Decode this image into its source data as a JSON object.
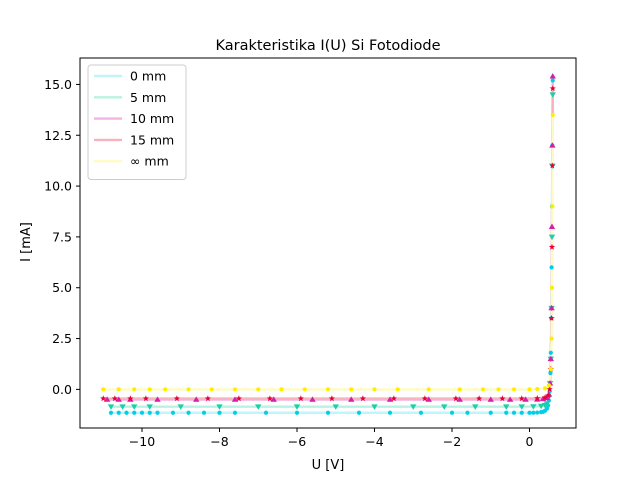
{
  "chart_data": {
    "type": "scatter",
    "title": "Karakteristika I(U) Si Fotodiode",
    "xlabel": "U [V]",
    "ylabel": "I [mA]",
    "xlim": [
      -11.6,
      1.2
    ],
    "ylim": [
      -1.9,
      16.3
    ],
    "xticks": [
      -10,
      -8,
      -6,
      -4,
      -2,
      0
    ],
    "yticks": [
      0.0,
      2.5,
      5.0,
      7.5,
      10.0,
      12.5,
      15.0
    ],
    "xtick_labels": [
      "−10",
      "−8",
      "−6",
      "−4",
      "−2",
      "0"
    ],
    "ytick_labels": [
      "0.0",
      "2.5",
      "5.0",
      "7.5",
      "10.0",
      "12.5",
      "15.0"
    ],
    "grid": false,
    "legend_position": "top-left",
    "series": [
      {
        "name": "0 mm",
        "color": "#00cfe8",
        "line_color": "#bff6fb",
        "marker": "circle",
        "x": [
          -10.8,
          -10.6,
          -10.4,
          -10.2,
          -10.0,
          -9.8,
          -9.6,
          -9.2,
          -8.8,
          -8.4,
          -8.0,
          -7.6,
          -6.8,
          -6.0,
          -5.2,
          -4.4,
          -3.6,
          -2.8,
          -2.0,
          -1.6,
          -1.0,
          -0.6,
          -0.4,
          -0.2,
          0.0,
          0.1,
          0.2,
          0.3,
          0.35,
          0.4,
          0.45,
          0.48,
          0.5,
          0.52,
          0.54,
          0.55,
          0.56,
          0.57,
          0.58,
          0.59,
          0.6
        ],
        "y": [
          -1.15,
          -1.15,
          -1.15,
          -1.15,
          -1.15,
          -1.15,
          -1.15,
          -1.15,
          -1.15,
          -1.15,
          -1.15,
          -1.15,
          -1.15,
          -1.15,
          -1.15,
          -1.15,
          -1.15,
          -1.15,
          -1.15,
          -1.15,
          -1.15,
          -1.15,
          -1.15,
          -1.15,
          -1.15,
          -1.15,
          -1.14,
          -1.12,
          -1.1,
          -1.05,
          -0.95,
          -0.8,
          -0.55,
          -0.1,
          0.8,
          1.8,
          3.5,
          6.0,
          9.0,
          12.0,
          15.2
        ]
      },
      {
        "name": "5 mm",
        "color": "#1dcfa8",
        "line_color": "#b9f2e3",
        "marker": "triangle-down",
        "x": [
          -10.8,
          -10.5,
          -10.2,
          -9.8,
          -9.0,
          -8.0,
          -7.0,
          -6.0,
          -5.0,
          -4.0,
          -3.0,
          -2.2,
          -1.4,
          -0.6,
          -0.2,
          0.1,
          0.3,
          0.4,
          0.45,
          0.5,
          0.53,
          0.55,
          0.57,
          0.58,
          0.59,
          0.6
        ],
        "y": [
          -0.85,
          -0.85,
          -0.85,
          -0.85,
          -0.85,
          -0.85,
          -0.85,
          -0.85,
          -0.85,
          -0.85,
          -0.85,
          -0.85,
          -0.85,
          -0.85,
          -0.85,
          -0.84,
          -0.82,
          -0.78,
          -0.7,
          -0.4,
          0.3,
          1.5,
          4.0,
          7.5,
          11.0,
          14.5
        ]
      },
      {
        "name": "10 mm",
        "color": "#d41fa6",
        "line_color": "#f3b3e4",
        "marker": "triangle-up",
        "x": [
          -10.9,
          -10.6,
          -10.3,
          -9.6,
          -8.6,
          -7.6,
          -6.6,
          -5.6,
          -4.6,
          -3.6,
          -2.6,
          -1.8,
          -1.0,
          -0.5,
          -0.1,
          0.2,
          0.35,
          0.45,
          0.5,
          0.53,
          0.55,
          0.57,
          0.58,
          0.59,
          0.6
        ],
        "y": [
          -0.5,
          -0.5,
          -0.5,
          -0.5,
          -0.5,
          -0.5,
          -0.5,
          -0.5,
          -0.5,
          -0.5,
          -0.5,
          -0.5,
          -0.5,
          -0.5,
          -0.5,
          -0.49,
          -0.47,
          -0.42,
          -0.25,
          0.3,
          1.5,
          4.0,
          8.0,
          12.0,
          15.4
        ]
      },
      {
        "name": "15 mm",
        "color": "#e8003a",
        "line_color": "#f6b3bd",
        "marker": "star",
        "x": [
          -11.0,
          -10.7,
          -10.3,
          -9.9,
          -9.1,
          -8.3,
          -7.5,
          -6.7,
          -5.9,
          -5.1,
          -4.3,
          -3.5,
          -2.7,
          -1.9,
          -1.3,
          -0.7,
          -0.2,
          0.2,
          0.4,
          0.48,
          0.52,
          0.55,
          0.57,
          0.58,
          0.59,
          0.6
        ],
        "y": [
          -0.45,
          -0.45,
          -0.45,
          -0.45,
          -0.45,
          -0.45,
          -0.45,
          -0.45,
          -0.45,
          -0.45,
          -0.45,
          -0.45,
          -0.45,
          -0.45,
          -0.45,
          -0.45,
          -0.45,
          -0.44,
          -0.4,
          -0.3,
          0.0,
          1.0,
          3.5,
          7.0,
          11.0,
          14.8
        ]
      },
      {
        "name": "∞ mm",
        "color": "#ffee00",
        "line_color": "#fffbc8",
        "marker": "circle",
        "x": [
          -11.0,
          -10.6,
          -10.2,
          -9.8,
          -9.4,
          -8.8,
          -8.2,
          -7.6,
          -7.0,
          -6.4,
          -5.8,
          -5.2,
          -4.6,
          -4.0,
          -3.4,
          -2.6,
          -1.8,
          -1.2,
          -0.8,
          -0.4,
          0.0,
          0.2,
          0.4,
          0.5,
          0.55,
          0.57,
          0.58,
          0.59,
          0.6
        ],
        "y": [
          0.0,
          0.0,
          0.0,
          0.0,
          0.0,
          0.0,
          0.0,
          0.0,
          0.0,
          0.0,
          0.0,
          0.0,
          0.0,
          0.0,
          0.0,
          0.0,
          0.0,
          0.0,
          0.0,
          0.0,
          0.0,
          0.02,
          0.05,
          0.2,
          1.0,
          2.5,
          5.0,
          9.0,
          13.5
        ]
      }
    ]
  }
}
